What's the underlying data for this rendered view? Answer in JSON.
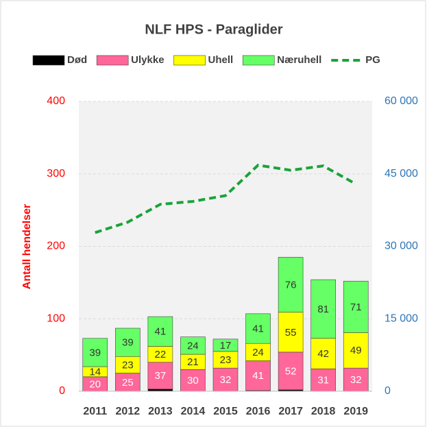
{
  "chart_data": {
    "type": "bar",
    "stacked": true,
    "title": "NLF HPS - Paraglider",
    "y_label": "Antall hendelser",
    "categories": [
      "2011",
      "2012",
      "2013",
      "2014",
      "2015",
      "2016",
      "2017",
      "2018",
      "2019"
    ],
    "series": [
      {
        "name": "Død",
        "color": "#000000",
        "values": [
          0,
          0,
          3,
          0,
          0,
          1,
          2,
          0,
          0
        ]
      },
      {
        "name": "Ulykke",
        "color": "#ff6699",
        "values": [
          20,
          25,
          37,
          30,
          32,
          41,
          52,
          31,
          32
        ],
        "value_labels": true
      },
      {
        "name": "Uhell",
        "color": "#ffff00",
        "values": [
          14,
          23,
          22,
          21,
          23,
          24,
          55,
          42,
          49
        ],
        "value_labels": true
      },
      {
        "name": "Næruhell",
        "color": "#66ff66",
        "values": [
          39,
          39,
          41,
          24,
          17,
          41,
          76,
          81,
          71
        ],
        "value_labels": true
      },
      {
        "name": "PG",
        "type": "line",
        "axis": "y2",
        "color": "#1aa33a",
        "dashed": true,
        "values": [
          32850,
          35000,
          38700,
          39300,
          40500,
          46800,
          45750,
          46650,
          42900
        ]
      }
    ],
    "ylim": [
      0,
      400
    ],
    "yticks": [
      0,
      100,
      200,
      300,
      400
    ],
    "y2lim": [
      0,
      60000
    ],
    "y2ticks": [
      0,
      {
        "value": 15000,
        "label": "15 000"
      },
      {
        "value": 30000,
        "label": "30 000"
      },
      {
        "value": 45000,
        "label": "45 000"
      },
      {
        "value": 60000,
        "label": "60 000"
      }
    ],
    "grid": true
  }
}
